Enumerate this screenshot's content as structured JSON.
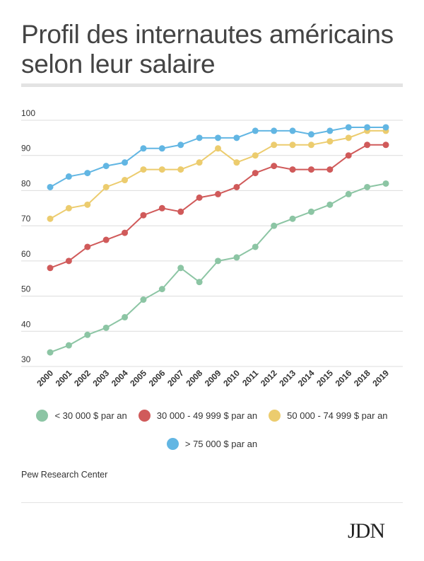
{
  "title": "Profil des internautes américains selon leur salaire",
  "source": "Pew Research Center",
  "logo": "JDN",
  "chart_data": {
    "type": "line",
    "categories": [
      "2000",
      "2001",
      "2002",
      "2003",
      "2004",
      "2005",
      "2006",
      "2007",
      "2008",
      "2009",
      "2010",
      "2011",
      "2012",
      "2013",
      "2014",
      "2015",
      "2016",
      "2018",
      "2019"
    ],
    "yticks": [
      30,
      40,
      50,
      60,
      70,
      80,
      90,
      100
    ],
    "ylim": [
      30,
      100
    ],
    "grid": true,
    "legend_position": "bottom",
    "series": [
      {
        "name": "< 30 000 $ par an",
        "color": "#8cc5a4",
        "values": [
          34,
          36,
          39,
          41,
          44,
          49,
          52,
          58,
          54,
          60,
          61,
          64,
          70,
          72,
          74,
          76,
          79,
          81,
          82
        ]
      },
      {
        "name": "30 000 - 49 999 $ par an",
        "color": "#d05a5a",
        "values": [
          58,
          60,
          64,
          66,
          68,
          73,
          75,
          74,
          78,
          79,
          81,
          85,
          87,
          86,
          86,
          86,
          90,
          93,
          93
        ]
      },
      {
        "name": "50 000 - 74 999 $ par an",
        "color": "#eccc6e",
        "values": [
          72,
          75,
          76,
          81,
          83,
          86,
          86,
          86,
          88,
          92,
          88,
          90,
          93,
          93,
          93,
          94,
          95,
          97,
          97
        ]
      },
      {
        "name": "> 75 000 $ par an",
        "color": "#62b6e3",
        "values": [
          81,
          84,
          85,
          87,
          88,
          92,
          92,
          93,
          95,
          95,
          95,
          97,
          97,
          97,
          96,
          97,
          98,
          98,
          98
        ]
      }
    ]
  }
}
